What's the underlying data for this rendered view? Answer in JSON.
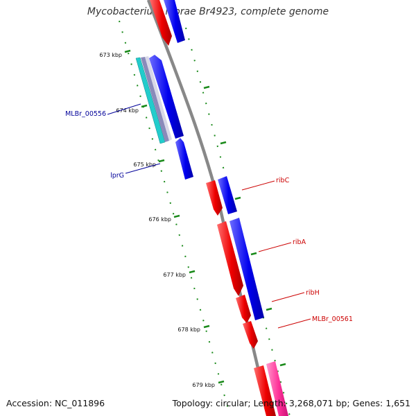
{
  "title": "Mycobacterium leprae Br4923, complete genome",
  "footer": {
    "accession": "Accession: NC_011896",
    "summary": "Topology: circular; Length: 3,268,071 bp; Genes: 1,651"
  },
  "ticks": [
    {
      "label": "673 kbp"
    },
    {
      "label": "674 kbp"
    },
    {
      "label": "675 kbp"
    },
    {
      "label": "676 kbp"
    },
    {
      "label": "677 kbp"
    },
    {
      "label": "678 kbp"
    },
    {
      "label": "679 kbp"
    }
  ],
  "genes": [
    {
      "label": "MLBr_00556"
    },
    {
      "label": "lprG"
    },
    {
      "label": "ribC"
    },
    {
      "label": "ribA"
    },
    {
      "label": "ribH"
    },
    {
      "label": "MLBr_00561"
    }
  ],
  "colors": {
    "forward": "#0000ee",
    "reverse": "#ee0000",
    "cyan": "#22cccc",
    "pink": "#ff3399",
    "backbone": "#888888",
    "tick": "#1a8a1a",
    "left_label": "#000099",
    "right_label": "#cc0000"
  }
}
